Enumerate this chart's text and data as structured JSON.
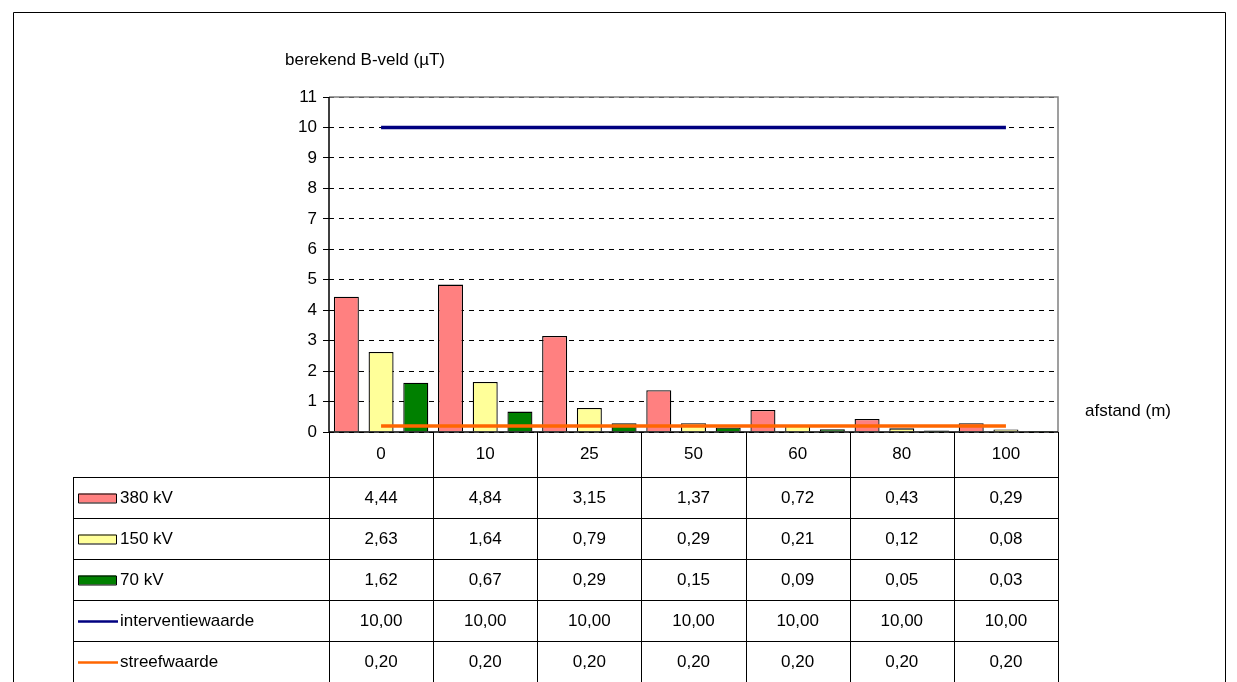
{
  "chart_data": {
    "type": "bar",
    "ylabel": "berekend B-veld (µT)",
    "xlabel": "afstand (m)",
    "categories": [
      "0",
      "10",
      "25",
      "50",
      "60",
      "80",
      "100"
    ],
    "ylim": [
      0,
      11
    ],
    "yticks": [
      0,
      1,
      2,
      3,
      4,
      5,
      6,
      7,
      8,
      9,
      10,
      11
    ],
    "grid": "y",
    "legend": "bottom left",
    "series": [
      {
        "name": "380 kV",
        "color": "#ff8080",
        "values": [
          4.44,
          4.84,
          3.15,
          1.37,
          0.72,
          0.43,
          0.29
        ],
        "value_labels": [
          "4,44",
          "4,84",
          "3,15",
          "1,37",
          "0,72",
          "0,43",
          "0,29"
        ]
      },
      {
        "name": "150 kV",
        "color": "#ffff99",
        "values": [
          2.63,
          1.64,
          0.79,
          0.29,
          0.21,
          0.12,
          0.08
        ],
        "value_labels": [
          "2,63",
          "1,64",
          "0,79",
          "0,29",
          "0,21",
          "0,12",
          "0,08"
        ]
      },
      {
        "name": "70 kV",
        "color": "#008000",
        "values": [
          1.62,
          0.67,
          0.29,
          0.15,
          0.09,
          0.05,
          0.03
        ],
        "value_labels": [
          "1,62",
          "0,67",
          "0,29",
          "0,15",
          "0,09",
          "0,05",
          "0,03"
        ]
      },
      {
        "name": "interventiewaarde",
        "type": "line",
        "color": "#000080",
        "values": [
          10,
          10,
          10,
          10,
          10,
          10,
          10
        ],
        "value_labels": [
          "10,00",
          "10,00",
          "10,00",
          "10,00",
          "10,00",
          "10,00",
          "10,00"
        ]
      },
      {
        "name": "streefwaarde",
        "type": "line",
        "color": "#ff6600",
        "values": [
          0.2,
          0.2,
          0.2,
          0.2,
          0.2,
          0.2,
          0.2
        ],
        "value_labels": [
          "0,20",
          "0,20",
          "0,20",
          "0,20",
          "0,20",
          "0,20",
          "0,20"
        ]
      }
    ]
  }
}
